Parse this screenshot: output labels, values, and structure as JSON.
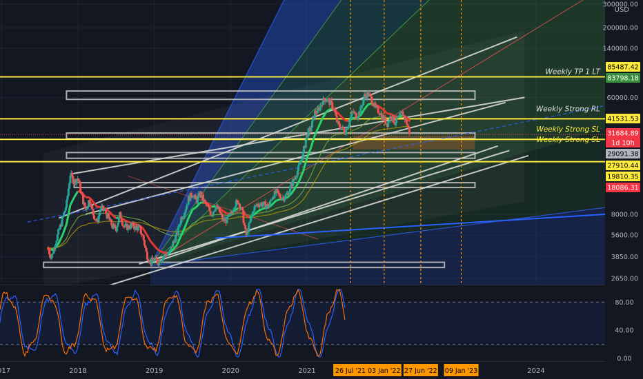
{
  "meta": {
    "currency": "USD"
  },
  "colors": {
    "background": "#131722",
    "grid": "#1f2430",
    "yellow": "#ffeb3b",
    "white_line": "#d8d8d8",
    "green": "#26a69a",
    "red": "#ef5350",
    "ema_green": "#29d36a",
    "ema_red": "#e53935",
    "orange": "#ff9800",
    "stoch_blue": "#2962ff",
    "stoch_orange": "#ff6d00",
    "axis_text": "#b2b5be"
  },
  "chart_data": {
    "type": "candlestick",
    "scale": "log",
    "price_axis": {
      "ticks": [
        300000,
        200000,
        140000,
        60000,
        8000,
        5600,
        3850,
        2650
      ],
      "tick_labels": [
        "300000.00",
        "200000.00",
        "140000.00",
        "60000.00",
        "8000.00",
        "5600.00",
        "3850.00",
        "2650.00"
      ]
    },
    "price_badges": [
      {
        "label": "85487.42",
        "style": "yellow"
      },
      {
        "label": "83798.18",
        "style": "green"
      },
      {
        "label": "41531.53",
        "style": "yellow"
      },
      {
        "label": "31684.89",
        "style": "red"
      },
      {
        "label": "1d 10h",
        "style": "red"
      },
      {
        "label": "29091.38",
        "style": "gray"
      },
      {
        "label": "27910.44",
        "style": "yellow"
      },
      {
        "label": "19810.35",
        "style": "yellow"
      },
      {
        "label": "18086.31",
        "style": "red"
      }
    ],
    "level_labels": [
      {
        "text": "Weekly TP 1 LT",
        "price": 85487.42,
        "color": "white"
      },
      {
        "text": "Weekly Strong RL",
        "price": 45000,
        "color": "white"
      },
      {
        "text": "Weekly Strong SL",
        "price": 31684.89,
        "color": "yellow"
      },
      {
        "text": "Weekly Strong SL",
        "price": 26500,
        "color": "yellow"
      }
    ],
    "horizontal_levels": [
      85487.42,
      41531.53,
      29091.38,
      19810.35
    ],
    "time_axis": {
      "labels": [
        "2017",
        "2018",
        "2019",
        "2020",
        "2021",
        "2024"
      ],
      "highlighted_dates": [
        "26 Jul '21",
        "03 Jan '22",
        "27 Jun '22",
        "09 Jan '23"
      ]
    },
    "weekly_close": [
      [
        2017.6,
        4500
      ],
      [
        2017.65,
        3800
      ],
      [
        2017.7,
        4800
      ],
      [
        2017.75,
        6000
      ],
      [
        2017.8,
        7500
      ],
      [
        2017.85,
        9500
      ],
      [
        2017.9,
        16000
      ],
      [
        2017.95,
        14000
      ],
      [
        2018.0,
        15000
      ],
      [
        2018.05,
        11000
      ],
      [
        2018.1,
        8500
      ],
      [
        2018.15,
        10500
      ],
      [
        2018.2,
        8000
      ],
      [
        2018.25,
        7000
      ],
      [
        2018.3,
        9000
      ],
      [
        2018.35,
        8500
      ],
      [
        2018.4,
        7500
      ],
      [
        2018.45,
        6500
      ],
      [
        2018.5,
        6300
      ],
      [
        2018.55,
        8000
      ],
      [
        2018.6,
        6500
      ],
      [
        2018.65,
        6400
      ],
      [
        2018.7,
        6600
      ],
      [
        2018.75,
        6400
      ],
      [
        2018.8,
        6300
      ],
      [
        2018.85,
        5500
      ],
      [
        2018.9,
        4000
      ],
      [
        2018.95,
        3500
      ],
      [
        2019.0,
        3700
      ],
      [
        2019.05,
        3500
      ],
      [
        2019.1,
        3800
      ],
      [
        2019.15,
        4000
      ],
      [
        2019.2,
        4100
      ],
      [
        2019.25,
        5000
      ],
      [
        2019.3,
        5700
      ],
      [
        2019.35,
        7500
      ],
      [
        2019.4,
        8500
      ],
      [
        2019.45,
        10500
      ],
      [
        2019.5,
        11500
      ],
      [
        2019.55,
        10000
      ],
      [
        2019.6,
        11500
      ],
      [
        2019.65,
        10000
      ],
      [
        2019.7,
        9000
      ],
      [
        2019.75,
        8000
      ],
      [
        2019.8,
        9200
      ],
      [
        2019.85,
        8500
      ],
      [
        2019.9,
        7200
      ],
      [
        2019.95,
        7200
      ],
      [
        2020.0,
        8000
      ],
      [
        2020.05,
        9500
      ],
      [
        2020.1,
        10000
      ],
      [
        2020.15,
        8500
      ],
      [
        2020.2,
        5500
      ],
      [
        2020.25,
        6800
      ],
      [
        2020.3,
        8800
      ],
      [
        2020.35,
        9500
      ],
      [
        2020.4,
        9600
      ],
      [
        2020.45,
        9400
      ],
      [
        2020.5,
        9200
      ],
      [
        2020.55,
        11000
      ],
      [
        2020.6,
        11700
      ],
      [
        2020.65,
        10800
      ],
      [
        2020.7,
        10700
      ],
      [
        2020.75,
        11500
      ],
      [
        2020.8,
        13500
      ],
      [
        2020.85,
        15500
      ],
      [
        2020.9,
        18500
      ],
      [
        2020.95,
        23000
      ],
      [
        2021.0,
        32000
      ],
      [
        2021.05,
        35000
      ],
      [
        2021.1,
        46000
      ],
      [
        2021.15,
        48000
      ],
      [
        2021.2,
        56000
      ],
      [
        2021.25,
        59000
      ],
      [
        2021.3,
        55000
      ],
      [
        2021.35,
        50000
      ],
      [
        2021.4,
        38000
      ],
      [
        2021.45,
        35500
      ],
      [
        2021.5,
        33500
      ],
      [
        2021.55,
        39000
      ],
      [
        2021.6,
        47000
      ],
      [
        2021.65,
        43000
      ],
      [
        2021.7,
        48000
      ],
      [
        2021.75,
        61000
      ],
      [
        2021.8,
        64000
      ],
      [
        2021.85,
        57000
      ],
      [
        2021.9,
        49000
      ],
      [
        2021.95,
        47000
      ],
      [
        2022.0,
        42000
      ],
      [
        2022.05,
        38000
      ],
      [
        2022.1,
        44000
      ],
      [
        2022.15,
        39000
      ],
      [
        2022.2,
        42000
      ],
      [
        2022.25,
        46000
      ],
      [
        2022.3,
        39500
      ],
      [
        2022.35,
        31684.89
      ]
    ]
  },
  "oscillator": {
    "levels": [
      80,
      20
    ],
    "tick_labels": [
      "80.00",
      "40.00",
      "0.00"
    ]
  }
}
